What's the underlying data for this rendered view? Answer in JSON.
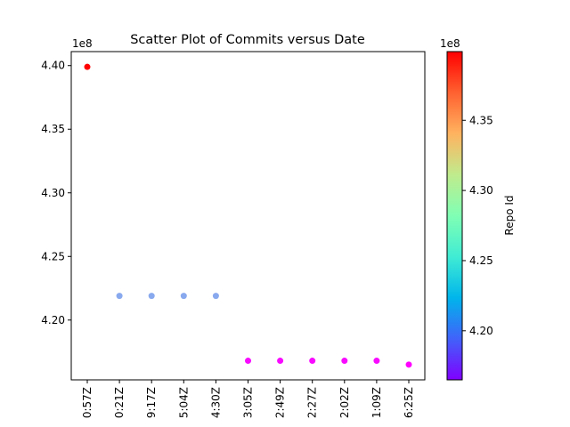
{
  "chart_data": {
    "type": "scatter",
    "title": "Scatter Plot of Commits versus Date",
    "xlabel": "",
    "ylabel": "",
    "y_offset_label": "1e8",
    "categories": [
      "0:57Z",
      "0:21Z",
      "9:17Z",
      "5:04Z",
      "4:30Z",
      "3:05Z",
      "2:49Z",
      "2:27Z",
      "2:02Z",
      "1:09Z",
      "6:25Z"
    ],
    "values": [
      439900000,
      421900000,
      421900000,
      421900000,
      421900000,
      416800000,
      416800000,
      416800000,
      416800000,
      416800000,
      416500000
    ],
    "y_ticks": [
      4.2,
      4.25,
      4.3,
      4.35,
      4.4
    ],
    "y_tick_labels": [
      "4.20",
      "4.25",
      "4.30",
      "4.35",
      "4.40"
    ],
    "ylim": [
      415300000,
      441100000
    ],
    "grid": false,
    "colorbar": {
      "label": "Repo Id",
      "offset_label": "1e8",
      "colormap": "rainbow",
      "range": [
        416500000,
        439900000
      ],
      "ticks": [
        4.2,
        4.25,
        4.3,
        4.35
      ],
      "tick_labels": [
        "4.20",
        "4.25",
        "4.30",
        "4.35"
      ]
    }
  }
}
